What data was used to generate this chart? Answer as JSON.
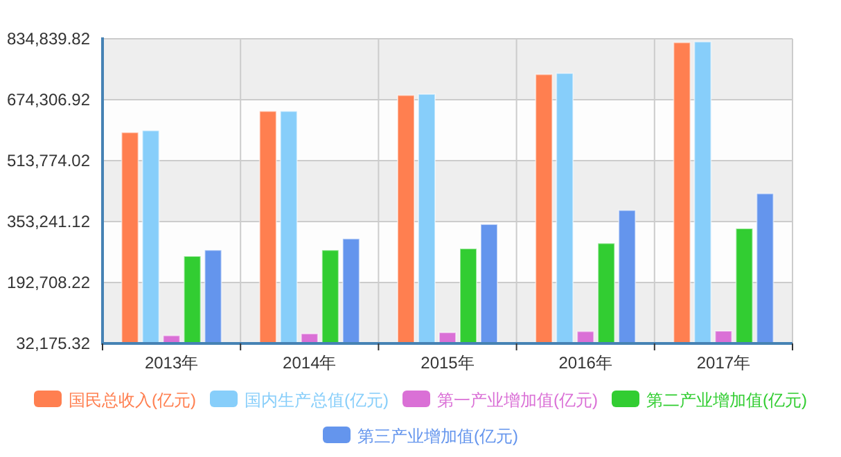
{
  "chart_data": {
    "type": "bar",
    "categories": [
      "2013年",
      "2014年",
      "2015年",
      "2016年",
      "2017年"
    ],
    "series": [
      {
        "name": "国民总收入(亿元)",
        "color": "#ff7f50",
        "values": [
          588000,
          644000,
          686000,
          741000,
          825000
        ]
      },
      {
        "name": "国内生产总值(亿元)",
        "color": "#87cefa",
        "values": [
          593000,
          644000,
          689000,
          744000,
          827000
        ]
      },
      {
        "name": "第一产业增加值(亿元)",
        "color": "#da70d6",
        "values": [
          53000,
          58000,
          61000,
          64000,
          65000
        ]
      },
      {
        "name": "第二产业增加值(亿元)",
        "color": "#32cd32",
        "values": [
          262000,
          278000,
          282000,
          296000,
          335000
        ]
      },
      {
        "name": "第三产业增加值(亿元)",
        "color": "#6495ed",
        "values": [
          278000,
          308000,
          346000,
          383000,
          427000
        ]
      }
    ],
    "ylim": [
      32175.32,
      834839.82
    ],
    "yticks": [
      {
        "value": 32175.32,
        "label": "32,175.32"
      },
      {
        "value": 192708.22,
        "label": "192,708.22"
      },
      {
        "value": 353241.12,
        "label": "353,241.12"
      },
      {
        "value": 513774.02,
        "label": "513,774.02"
      },
      {
        "value": 674306.92,
        "label": "674,306.92"
      },
      {
        "value": 834839.82,
        "label": "834,839.82"
      }
    ],
    "grid": true,
    "legend": "bottom"
  }
}
